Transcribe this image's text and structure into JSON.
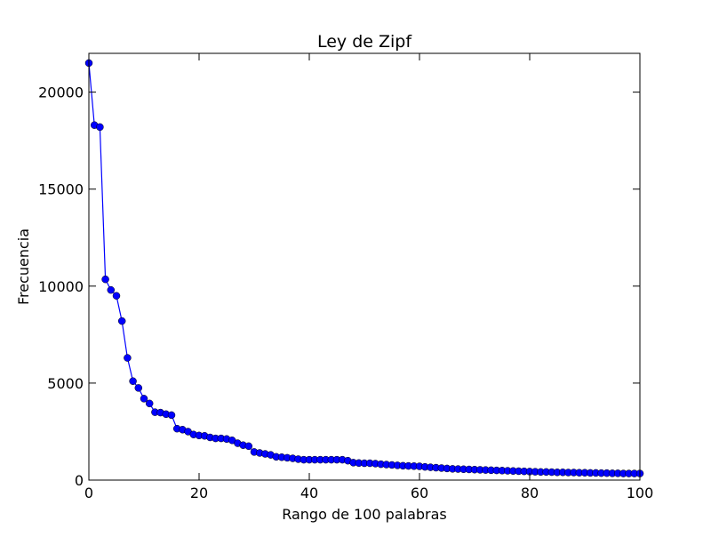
{
  "chart_data": {
    "type": "line",
    "title": "Ley de Zipf",
    "xlabel": "Rango de 100 palabras",
    "ylabel": "Frecuencia",
    "xlim": [
      0,
      100
    ],
    "ylim": [
      0,
      22000
    ],
    "xticks": [
      0,
      20,
      40,
      60,
      80,
      100
    ],
    "yticks": [
      0,
      5000,
      10000,
      15000,
      20000
    ],
    "xtick_labels": [
      "0",
      "20",
      "40",
      "60",
      "80",
      "100"
    ],
    "ytick_labels": [
      "0",
      "5000",
      "10000",
      "15000",
      "20000"
    ],
    "grid": false,
    "series": [
      {
        "color": "#0000ff",
        "marker": "circle",
        "x": [
          0,
          1,
          2,
          3,
          4,
          5,
          6,
          7,
          8,
          9,
          10,
          11,
          12,
          13,
          14,
          15,
          16,
          17,
          18,
          19,
          20,
          21,
          22,
          23,
          24,
          25,
          26,
          27,
          28,
          29,
          30,
          31,
          32,
          33,
          34,
          35,
          36,
          37,
          38,
          39,
          40,
          41,
          42,
          43,
          44,
          45,
          46,
          47,
          48,
          49,
          50,
          51,
          52,
          53,
          54,
          55,
          56,
          57,
          58,
          59,
          60,
          61,
          62,
          63,
          64,
          65,
          66,
          67,
          68,
          69,
          70,
          71,
          72,
          73,
          74,
          75,
          76,
          77,
          78,
          79,
          80,
          81,
          82,
          83,
          84,
          85,
          86,
          87,
          88,
          89,
          90,
          91,
          92,
          93,
          94,
          95,
          96,
          97,
          98,
          99,
          100
        ],
        "values": [
          21500,
          18300,
          18200,
          10350,
          9800,
          9500,
          8200,
          6300,
          5100,
          4750,
          4200,
          3950,
          3500,
          3480,
          3400,
          3350,
          2650,
          2600,
          2500,
          2350,
          2300,
          2280,
          2200,
          2150,
          2150,
          2120,
          2050,
          1900,
          1800,
          1750,
          1450,
          1400,
          1350,
          1300,
          1200,
          1180,
          1150,
          1120,
          1080,
          1050,
          1050,
          1050,
          1050,
          1050,
          1050,
          1050,
          1050,
          1000,
          900,
          880,
          870,
          870,
          850,
          820,
          800,
          780,
          760,
          740,
          730,
          720,
          710,
          680,
          660,
          640,
          620,
          600,
          580,
          570,
          560,
          550,
          540,
          530,
          520,
          510,
          500,
          490,
          480,
          470,
          460,
          450,
          440,
          430,
          420,
          420,
          410,
          400,
          400,
          390,
          390,
          380,
          380,
          370,
          370,
          360,
          360,
          350,
          350,
          340,
          340,
          340,
          340
        ]
      }
    ]
  }
}
